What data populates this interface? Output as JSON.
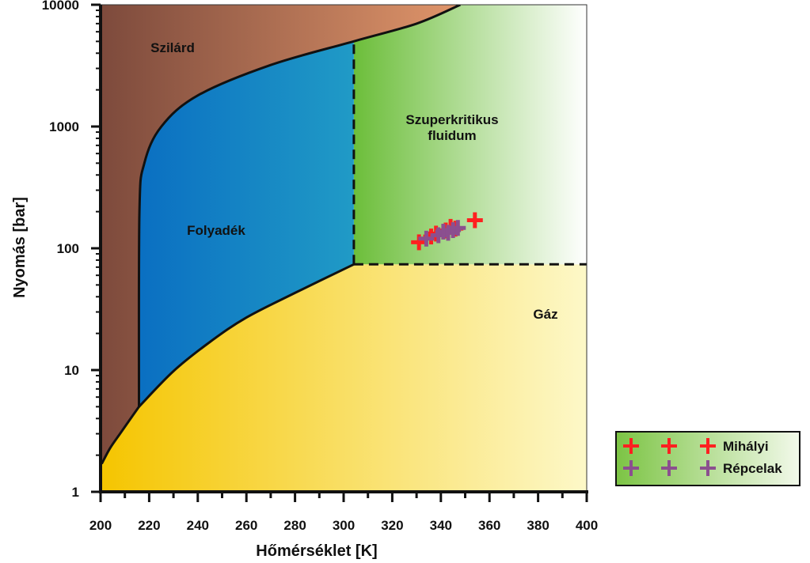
{
  "chart_data": {
    "type": "scatter",
    "xlabel": "Hőmérséklet [K]",
    "ylabel": "Nyomás [bar]",
    "xlim": [
      200,
      400
    ],
    "ylim": [
      1,
      10000
    ],
    "yscale": "log",
    "x_ticks": [
      "200",
      "220",
      "240",
      "260",
      "280",
      "300",
      "320",
      "340",
      "360",
      "380",
      "400"
    ],
    "y_ticks": [
      "1",
      "10",
      "100",
      "1000",
      "10000"
    ],
    "regions": [
      {
        "label": "Szilárd",
        "color": "#8b5a4a"
      },
      {
        "label": "Folyadék",
        "color": "#1b8fc4"
      },
      {
        "label": "Szuperkritikus fluidum",
        "color": "#7cc444"
      },
      {
        "label": "Gáz",
        "color": "#f7d560"
      }
    ],
    "phase_boundaries": {
      "sublimation": {
        "x": [
          200.5,
          204,
          208,
          212,
          215.8
        ],
        "y": [
          1.7,
          2.3,
          3.0,
          3.9,
          5.0
        ]
      },
      "vaporization": {
        "x": [
          215.8,
          230,
          245,
          260,
          280,
          304.2
        ],
        "y": [
          5.0,
          9.8,
          17,
          27,
          43,
          73.8
        ]
      },
      "melting": {
        "x": [
          215.8,
          216,
          218,
          225,
          240,
          270,
          304,
          330,
          348
        ],
        "y": [
          5.0,
          200,
          500,
          1000,
          1800,
          3200,
          5000,
          7000,
          10000
        ]
      },
      "critical_isotherm": {
        "x": [
          304.2,
          304.2
        ],
        "y": [
          73.8,
          5000
        ]
      },
      "critical_isobar": {
        "x": [
          304.2,
          400
        ],
        "y": [
          73.8,
          73.8
        ]
      }
    },
    "series": [
      {
        "name": "Mihályi",
        "color": "#ff2020",
        "points": [
          [
            331,
            112
          ],
          [
            336,
            125
          ],
          [
            338,
            132
          ],
          [
            342,
            140
          ],
          [
            344,
            150
          ],
          [
            346,
            145
          ],
          [
            354,
            170
          ]
        ]
      },
      {
        "name": "Répcelak",
        "color": "#8b4f8f",
        "points": [
          [
            334,
            120
          ],
          [
            339,
            128
          ],
          [
            343,
            134
          ],
          [
            345,
            141
          ],
          [
            347,
            147
          ],
          [
            341,
            137
          ]
        ]
      }
    ],
    "legend_position": "right, outside plot"
  }
}
